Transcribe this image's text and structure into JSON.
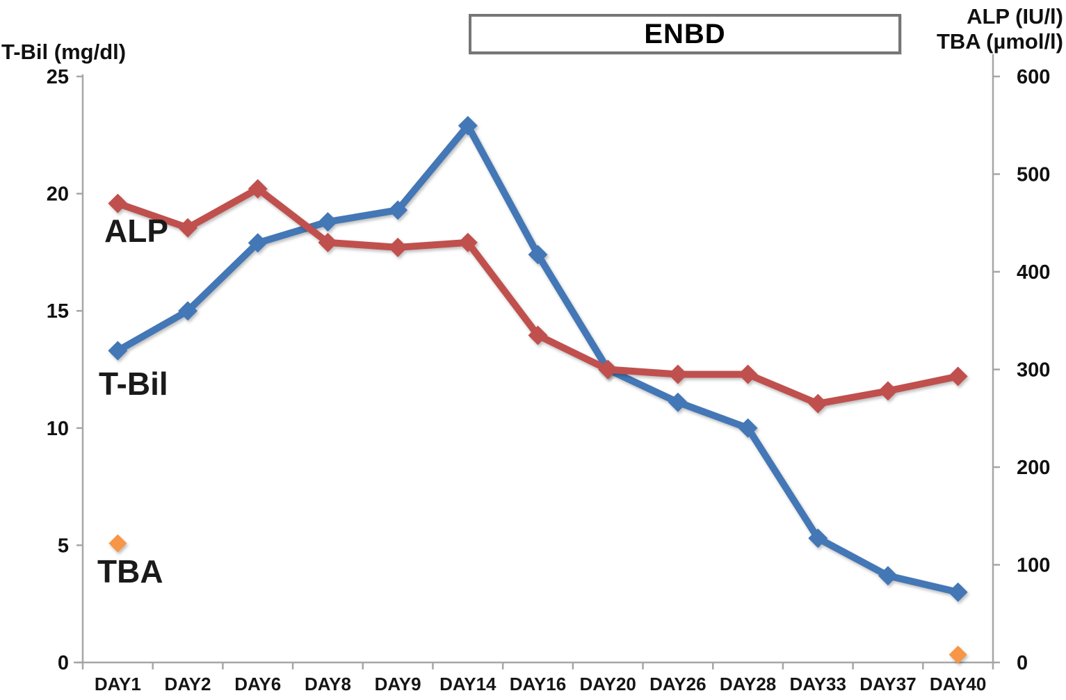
{
  "chart_data": {
    "type": "line",
    "title": "",
    "categories": [
      "DAY1",
      "DAY2",
      "DAY6",
      "DAY8",
      "DAY9",
      "DAY14",
      "DAY16",
      "DAY20",
      "DAY26",
      "DAY28",
      "DAY33",
      "DAY37",
      "DAY40"
    ],
    "series": [
      {
        "name": "T-Bil",
        "axis": "left",
        "unit": "mg/dl",
        "color": "#4377B6",
        "draw_line": true,
        "values": [
          13.3,
          15.0,
          17.9,
          18.8,
          19.3,
          22.9,
          17.4,
          12.5,
          11.1,
          10.0,
          5.3,
          3.7,
          3.0
        ]
      },
      {
        "name": "ALP",
        "axis": "right",
        "unit": "IU/l",
        "color": "#C0504D",
        "draw_line": true,
        "values": [
          470,
          445,
          485,
          430,
          425,
          430,
          335,
          300,
          295,
          295,
          265,
          278,
          293
        ]
      },
      {
        "name": "TBA",
        "axis": "right",
        "unit": "µmol/l",
        "color": "#F79646",
        "draw_line": false,
        "values": [
          122,
          null,
          null,
          null,
          null,
          null,
          null,
          null,
          null,
          null,
          null,
          null,
          8
        ]
      }
    ],
    "left_axis": {
      "label": "T-Bil (mg/dl)",
      "min": 0,
      "max": 25,
      "ticks": [
        25,
        20,
        15,
        10,
        5,
        0
      ]
    },
    "right_axis": {
      "label_line1": "ALP (IU/l)",
      "label_line2": "TBA (µmol/l)",
      "min": 0,
      "max": 600,
      "ticks": [
        600,
        500,
        400,
        300,
        200,
        100,
        0
      ]
    },
    "annotation": {
      "text": "ENBD",
      "span": "DAY14 to DAY37"
    },
    "grid": false,
    "legend_position": "in-plot labels",
    "axis_color": "#A6A6A6",
    "text_color": "#111111"
  }
}
